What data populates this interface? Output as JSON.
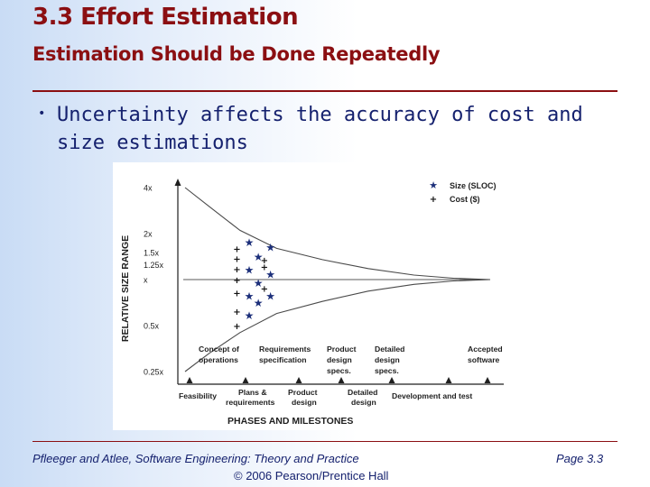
{
  "slide": {
    "title": "3.3 Effort Estimation",
    "subtitle": "Estimation Should be Done Repeatedly",
    "bullet": "Uncertainty affects the accuracy of cost and size estimations"
  },
  "footer": {
    "source": "Pfleeger and Atlee, Software Engineering: Theory and Practice",
    "copyright": "© 2006 Pearson/Prentice Hall",
    "page": "Page 3.3"
  },
  "chart_data": {
    "type": "scatter",
    "title": "",
    "xlabel": "PHASES AND MILESTONES",
    "ylabel": "RELATIVE SIZE RANGE",
    "y_ticks": [
      "4x",
      "2x",
      "1.5x",
      "1.25x",
      "x",
      "0.5x",
      "0.25x"
    ],
    "y_tick_values": [
      4,
      2,
      1.5,
      1.25,
      1,
      0.5,
      0.25
    ],
    "milestones_upper": [
      "Concept of operations",
      "Requirements specification",
      "Product design specs.",
      "Detailed design specs.",
      "Accepted software"
    ],
    "phases_lower": [
      "Feasibility",
      "Plans & requirements",
      "Product design",
      "Detailed design",
      "Development and test"
    ],
    "legend": [
      {
        "symbol": "★",
        "label": "Size (SLOC)"
      },
      {
        "symbol": "+",
        "label": "Cost ($)"
      }
    ],
    "envelope_upper": [
      [
        0.0,
        4.0
      ],
      [
        0.08,
        3.0
      ],
      [
        0.18,
        2.1
      ],
      [
        0.3,
        1.6
      ],
      [
        0.45,
        1.35
      ],
      [
        0.6,
        1.18
      ],
      [
        0.75,
        1.07
      ],
      [
        0.88,
        1.02
      ],
      [
        1.0,
        1.0
      ]
    ],
    "envelope_lower": [
      [
        0.0,
        0.25
      ],
      [
        0.08,
        0.33
      ],
      [
        0.18,
        0.45
      ],
      [
        0.3,
        0.6
      ],
      [
        0.45,
        0.72
      ],
      [
        0.6,
        0.84
      ],
      [
        0.75,
        0.93
      ],
      [
        0.88,
        0.98
      ],
      [
        1.0,
        1.0
      ]
    ],
    "series": [
      {
        "name": "Size (SLOC)",
        "points": [
          [
            0.21,
            1.75
          ],
          [
            0.24,
            1.4
          ],
          [
            0.21,
            1.15
          ],
          [
            0.24,
            0.95
          ],
          [
            0.21,
            0.78
          ],
          [
            0.24,
            0.7
          ],
          [
            0.21,
            0.58
          ],
          [
            0.28,
            1.62
          ],
          [
            0.28,
            1.08
          ],
          [
            0.28,
            0.78
          ]
        ]
      },
      {
        "name": "Cost ($)",
        "points": [
          [
            0.17,
            1.6
          ],
          [
            0.17,
            1.38
          ],
          [
            0.17,
            1.18
          ],
          [
            0.17,
            1.0
          ],
          [
            0.17,
            0.82
          ],
          [
            0.17,
            0.62
          ],
          [
            0.17,
            0.5
          ],
          [
            0.26,
            1.35
          ],
          [
            0.26,
            1.22
          ],
          [
            0.26,
            0.88
          ]
        ]
      }
    ]
  }
}
